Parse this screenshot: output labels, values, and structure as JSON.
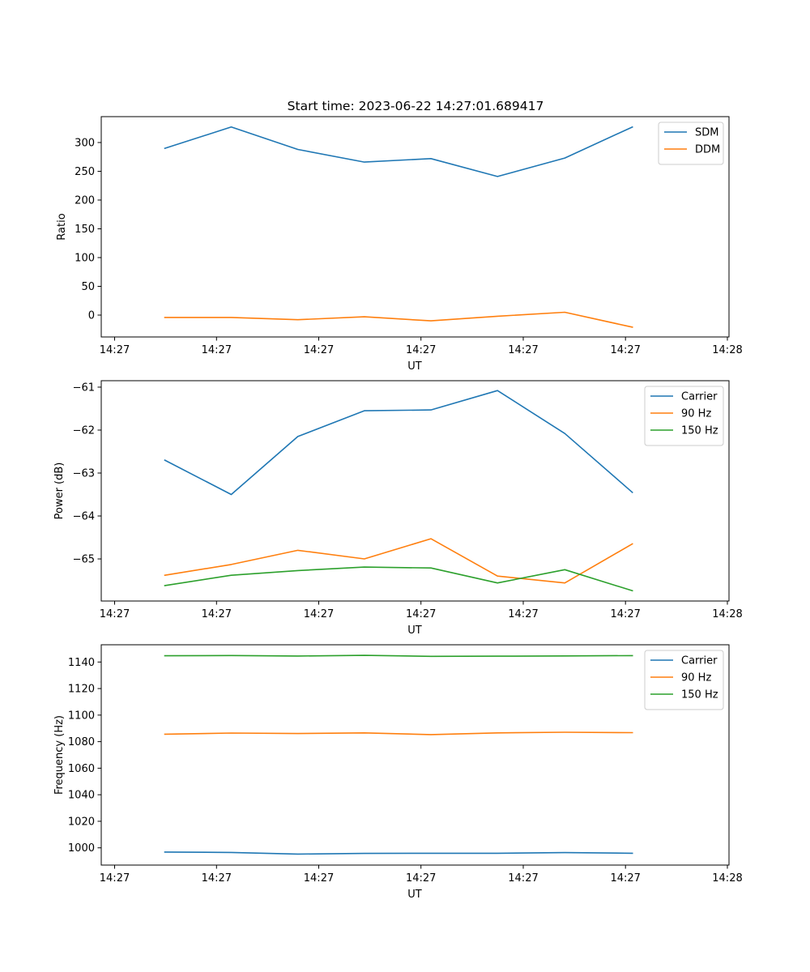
{
  "title": "Start time: 2023-06-22 14:27:01.689417",
  "chart_data": [
    {
      "type": "line",
      "title": "Start time: 2023-06-22 14:27:01.689417",
      "xlabel": "UT",
      "ylabel": "Ratio",
      "x_tick_labels": [
        "14:27",
        "14:27",
        "14:27",
        "14:27",
        "14:27",
        "14:27",
        "14:27",
        "14:28"
      ],
      "y_ticks": [
        0,
        50,
        100,
        150,
        200,
        250,
        300
      ],
      "ylim": [
        -38,
        345
      ],
      "legend_position": "top-right",
      "grid": false,
      "series": [
        {
          "name": "SDM",
          "color": "#1f77b4",
          "values": [
            290,
            327,
            288,
            266,
            272,
            241,
            273,
            327
          ]
        },
        {
          "name": "DDM",
          "color": "#ff7f0e",
          "values": [
            -4,
            -4,
            -8,
            -3,
            -10,
            -2,
            5,
            -21
          ]
        }
      ]
    },
    {
      "type": "line",
      "title": "",
      "xlabel": "UT",
      "ylabel": "Power (dB)",
      "x_tick_labels": [
        "14:27",
        "14:27",
        "14:27",
        "14:27",
        "14:27",
        "14:27",
        "14:27",
        "14:28"
      ],
      "y_ticks": [
        -65,
        -64,
        -63,
        -62,
        -61
      ],
      "ylim": [
        -65.98,
        -60.85
      ],
      "legend_position": "top-right",
      "grid": false,
      "series": [
        {
          "name": "Carrier",
          "color": "#1f77b4",
          "values": [
            -62.7,
            -63.5,
            -62.15,
            -61.55,
            -61.53,
            -61.08,
            -62.08,
            -63.45
          ]
        },
        {
          "name": "90 Hz",
          "color": "#ff7f0e",
          "values": [
            -65.38,
            -65.13,
            -64.8,
            -65.0,
            -64.53,
            -65.4,
            -65.56,
            -64.65
          ]
        },
        {
          "name": "150 Hz",
          "color": "#2ca02c",
          "values": [
            -65.62,
            -65.38,
            -65.27,
            -65.19,
            -65.21,
            -65.56,
            -65.25,
            -65.74
          ]
        }
      ]
    },
    {
      "type": "line",
      "title": "",
      "xlabel": "UT",
      "ylabel": "Frequency (Hz)",
      "x_tick_labels": [
        "14:27",
        "14:27",
        "14:27",
        "14:27",
        "14:27",
        "14:27",
        "14:27",
        "14:28"
      ],
      "y_ticks": [
        1000,
        1020,
        1040,
        1060,
        1080,
        1100,
        1120,
        1140
      ],
      "ylim": [
        987,
        1153
      ],
      "legend_position": "top-right",
      "grid": false,
      "series": [
        {
          "name": "Carrier",
          "color": "#1f77b4",
          "values": [
            996.8,
            996.5,
            995.3,
            995.8,
            995.9,
            995.9,
            996.4,
            995.9
          ]
        },
        {
          "name": "90 Hz",
          "color": "#ff7f0e",
          "values": [
            1085.6,
            1086.5,
            1086.1,
            1086.6,
            1085.3,
            1086.6,
            1087.1,
            1086.8
          ]
        },
        {
          "name": "150 Hz",
          "color": "#2ca02c",
          "values": [
            1144.7,
            1144.9,
            1144.5,
            1145.0,
            1144.3,
            1144.4,
            1144.6,
            1144.8
          ]
        }
      ]
    }
  ]
}
